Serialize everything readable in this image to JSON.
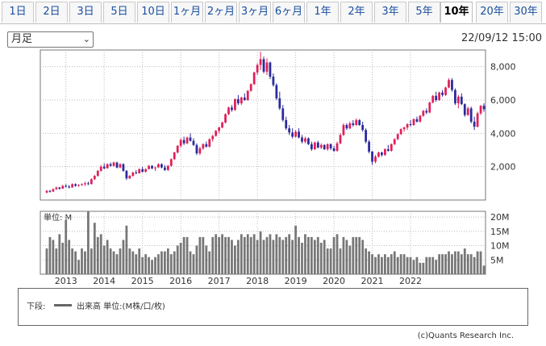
{
  "tabs": [
    "1日",
    "2日",
    "3日",
    "5日",
    "10日",
    "1ヶ月",
    "2ヶ月",
    "3ヶ月",
    "6ヶ月",
    "1年",
    "2年",
    "3年",
    "5年",
    "10年",
    "20年",
    "30年"
  ],
  "active_tab": "10年",
  "period_select": {
    "value": "月足"
  },
  "datetime": "22/09/12 15:00",
  "legend": {
    "label": "下段:",
    "text": "出来高 単位:(M株/口/枚)"
  },
  "credit": "(c)Quants Research Inc.",
  "colors": {
    "up": "#e0205a",
    "down": "#2b2b9c",
    "volume": "#777777",
    "grid": "#bbbbbb"
  },
  "chart_data": [
    {
      "type": "candlestick",
      "title": "",
      "ylim": [
        0,
        9000
      ],
      "y_ticks": [
        2000,
        4000,
        6000,
        8000
      ],
      "y_tick_labels": [
        "2,000",
        "4,000",
        "6,000",
        "8,000"
      ],
      "grid": true,
      "series": [
        {
          "values": [
            [
              450,
              600,
              400,
              550
            ],
            [
              550,
              600,
              450,
              500
            ],
            [
              500,
              700,
              500,
              650
            ],
            [
              650,
              800,
              600,
              750
            ],
            [
              750,
              780,
              620,
              680
            ],
            [
              680,
              900,
              680,
              850
            ],
            [
              850,
              950,
              750,
              800
            ],
            [
              800,
              900,
              700,
              750
            ],
            [
              750,
              1000,
              740,
              950
            ],
            [
              950,
              1000,
              800,
              850
            ],
            [
              850,
              950,
              800,
              900
            ],
            [
              900,
              1000,
              850,
              950
            ],
            [
              950,
              1100,
              850,
              1000
            ],
            [
              1000,
              1100,
              900,
              950
            ],
            [
              950,
              1300,
              950,
              1250
            ],
            [
              1250,
              1500,
              1200,
              1450
            ],
            [
              1450,
              1800,
              1400,
              1750
            ],
            [
              1750,
              2100,
              1700,
              2000
            ],
            [
              2000,
              2200,
              1850,
              1900
            ],
            [
              1900,
              2200,
              1900,
              2150
            ],
            [
              2150,
              2250,
              2000,
              2050
            ],
            [
              2050,
              2300,
              2000,
              2250
            ],
            [
              2250,
              2300,
              1900,
              1950
            ],
            [
              1950,
              2200,
              1900,
              2150
            ],
            [
              2150,
              2200,
              1700,
              1750
            ],
            [
              1750,
              1800,
              1200,
              1300
            ],
            [
              1300,
              1500,
              1250,
              1450
            ],
            [
              1450,
              1700,
              1400,
              1650
            ],
            [
              1650,
              1800,
              1550,
              1600
            ],
            [
              1600,
              1900,
              1600,
              1850
            ],
            [
              1850,
              2000,
              1650,
              1700
            ],
            [
              1700,
              1900,
              1650,
              1850
            ],
            [
              1850,
              2100,
              1850,
              2050
            ],
            [
              2050,
              2100,
              1850,
              1900
            ],
            [
              1900,
              2000,
              1750,
              1950
            ],
            [
              1950,
              2200,
              1950,
              2150
            ],
            [
              2150,
              2200,
              1900,
              1950
            ],
            [
              1950,
              2100,
              1750,
              1800
            ],
            [
              1800,
              2100,
              1750,
              2050
            ],
            [
              2050,
              2500,
              2000,
              2450
            ],
            [
              2450,
              2900,
              2400,
              2850
            ],
            [
              2850,
              3300,
              2800,
              3250
            ],
            [
              3250,
              3700,
              3150,
              3600
            ],
            [
              3600,
              3800,
              3300,
              3400
            ],
            [
              3400,
              3800,
              3350,
              3750
            ],
            [
              3750,
              4000,
              3500,
              3550
            ],
            [
              3550,
              3700,
              3250,
              3300
            ],
            [
              3300,
              3400,
              2700,
              2800
            ],
            [
              2800,
              3200,
              2700,
              3100
            ],
            [
              3100,
              3400,
              3000,
              3350
            ],
            [
              3350,
              3500,
              3150,
              3200
            ],
            [
              3200,
              3700,
              3150,
              3650
            ],
            [
              3650,
              3900,
              3500,
              3850
            ],
            [
              3850,
              4200,
              3800,
              4150
            ],
            [
              4150,
              4400,
              4000,
              4350
            ],
            [
              4350,
              4700,
              4300,
              4650
            ],
            [
              4650,
              5200,
              4600,
              5150
            ],
            [
              5150,
              5600,
              5100,
              5550
            ],
            [
              5550,
              5700,
              5300,
              5400
            ],
            [
              5400,
              6100,
              5350,
              6050
            ],
            [
              6050,
              6300,
              5700,
              5800
            ],
            [
              5800,
              6200,
              5700,
              6150
            ],
            [
              6150,
              6400,
              5950,
              6000
            ],
            [
              6000,
              6600,
              5950,
              6550
            ],
            [
              6550,
              7000,
              6500,
              6950
            ],
            [
              6950,
              7700,
              6900,
              7650
            ],
            [
              7650,
              8200,
              7500,
              8100
            ],
            [
              8100,
              8900,
              7800,
              8450
            ],
            [
              8450,
              8600,
              7600,
              7700
            ],
            [
              7700,
              8500,
              7500,
              8250
            ],
            [
              8250,
              8300,
              7250,
              7400
            ],
            [
              7400,
              7600,
              6800,
              6900
            ],
            [
              6900,
              7000,
              6000,
              6100
            ],
            [
              6100,
              6500,
              5400,
              5500
            ],
            [
              5500,
              5700,
              4700,
              4800
            ],
            [
              4800,
              5000,
              4200,
              4300
            ],
            [
              4300,
              4500,
              3900,
              4050
            ],
            [
              4050,
              4300,
              3700,
              3800
            ],
            [
              3800,
              4200,
              3750,
              4100
            ],
            [
              4100,
              4300,
              3700,
              3750
            ],
            [
              3750,
              3900,
              3400,
              3500
            ],
            [
              3500,
              3800,
              3400,
              3700
            ],
            [
              3700,
              3750,
              3300,
              3350
            ],
            [
              3350,
              3500,
              2950,
              3050
            ],
            [
              3050,
              3500,
              3000,
              3450
            ],
            [
              3450,
              3550,
              3100,
              3150
            ],
            [
              3150,
              3400,
              3050,
              3300
            ],
            [
              3300,
              3350,
              3000,
              3050
            ],
            [
              3050,
              3400,
              2950,
              3350
            ],
            [
              3350,
              3400,
              3000,
              3100
            ],
            [
              3100,
              3250,
              2900,
              2950
            ],
            [
              2950,
              3500,
              2900,
              3400
            ],
            [
              3400,
              4000,
              3350,
              3900
            ],
            [
              3900,
              4600,
              3850,
              4500
            ],
            [
              4500,
              4600,
              4200,
              4300
            ],
            [
              4300,
              4700,
              4250,
              4600
            ],
            [
              4600,
              4800,
              4400,
              4500
            ],
            [
              4500,
              4900,
              4450,
              4800
            ],
            [
              4800,
              4850,
              4450,
              4500
            ],
            [
              4500,
              4700,
              4100,
              4200
            ],
            [
              4200,
              4300,
              3400,
              3500
            ],
            [
              3500,
              3600,
              2800,
              2900
            ],
            [
              2900,
              2950,
              2100,
              2300
            ],
            [
              2300,
              2700,
              2200,
              2600
            ],
            [
              2600,
              2900,
              2550,
              2850
            ],
            [
              2850,
              2900,
              2600,
              2700
            ],
            [
              2700,
              3100,
              2650,
              3050
            ],
            [
              3050,
              3300,
              2900,
              2950
            ],
            [
              2950,
              3400,
              2900,
              3350
            ],
            [
              3350,
              3700,
              3300,
              3650
            ],
            [
              3650,
              4000,
              3600,
              3950
            ],
            [
              3950,
              4300,
              3900,
              4250
            ],
            [
              4250,
              4400,
              4100,
              4350
            ],
            [
              4350,
              4600,
              4200,
              4550
            ],
            [
              4550,
              4800,
              4400,
              4500
            ],
            [
              4500,
              4900,
              4450,
              4850
            ],
            [
              4850,
              5000,
              4650,
              4700
            ],
            [
              4700,
              5100,
              4650,
              5050
            ],
            [
              5050,
              5400,
              5000,
              5350
            ],
            [
              5350,
              5500,
              5150,
              5250
            ],
            [
              5250,
              5900,
              5200,
              5850
            ],
            [
              5850,
              6300,
              5800,
              6250
            ],
            [
              6250,
              6500,
              5900,
              6000
            ],
            [
              6000,
              6500,
              5950,
              6450
            ],
            [
              6450,
              6600,
              6200,
              6300
            ],
            [
              6300,
              6800,
              6250,
              6750
            ],
            [
              6750,
              7300,
              6700,
              7200
            ],
            [
              7200,
              7300,
              6500,
              6600
            ],
            [
              6600,
              6700,
              5700,
              5800
            ],
            [
              5800,
              6300,
              5500,
              6200
            ],
            [
              6200,
              6400,
              5700,
              5750
            ],
            [
              5750,
              5800,
              5000,
              5100
            ],
            [
              5100,
              5600,
              5050,
              5500
            ],
            [
              5500,
              5600,
              4600,
              4700
            ],
            [
              4700,
              5000,
              4200,
              4400
            ],
            [
              4400,
              5300,
              4350,
              5200
            ],
            [
              5200,
              5700,
              5100,
              5650
            ],
            [
              5650,
              5800,
              5300,
              5450
            ]
          ]
        }
      ]
    },
    {
      "type": "bar",
      "title": "",
      "ylabel": "単位: M",
      "ylim": [
        0,
        22
      ],
      "y_ticks": [
        5,
        10,
        15,
        20
      ],
      "y_tick_labels": [
        "5M",
        "10M",
        "15M",
        "20M"
      ],
      "x_tick_labels": [
        "2013",
        "2014",
        "2015",
        "2016",
        "2017",
        "2018",
        "2019",
        "2020",
        "2021",
        "2022"
      ],
      "grid": true,
      "series": [
        {
          "values": [
            9,
            13,
            12,
            9,
            14,
            11,
            19,
            12,
            9,
            8,
            5,
            9,
            8,
            22,
            9,
            18,
            13,
            14,
            10,
            12,
            9,
            8,
            7,
            9,
            12,
            17,
            9,
            8,
            7,
            9,
            6,
            7,
            6,
            5,
            6,
            7,
            8,
            8,
            9,
            7,
            8,
            10,
            11,
            13,
            13,
            8,
            7,
            10,
            13,
            13,
            10,
            8,
            13,
            14,
            13,
            14,
            13,
            13,
            12,
            10,
            12,
            14,
            13,
            14,
            13,
            14,
            12,
            15,
            12,
            13,
            14,
            12,
            14,
            13,
            12,
            13,
            14,
            12,
            17,
            13,
            11,
            14,
            13,
            13,
            12,
            13,
            11,
            12,
            9,
            9,
            13,
            14,
            9,
            13,
            12,
            10,
            13,
            13,
            13,
            12,
            9,
            8,
            7,
            6,
            7,
            6,
            7,
            6,
            7,
            8,
            6,
            7,
            7,
            6,
            6,
            5,
            6,
            4,
            4,
            6,
            6,
            6,
            5,
            7,
            7,
            7,
            8,
            7,
            8,
            8,
            7,
            9,
            7,
            7,
            6,
            8,
            8,
            3
          ]
        }
      ]
    }
  ]
}
